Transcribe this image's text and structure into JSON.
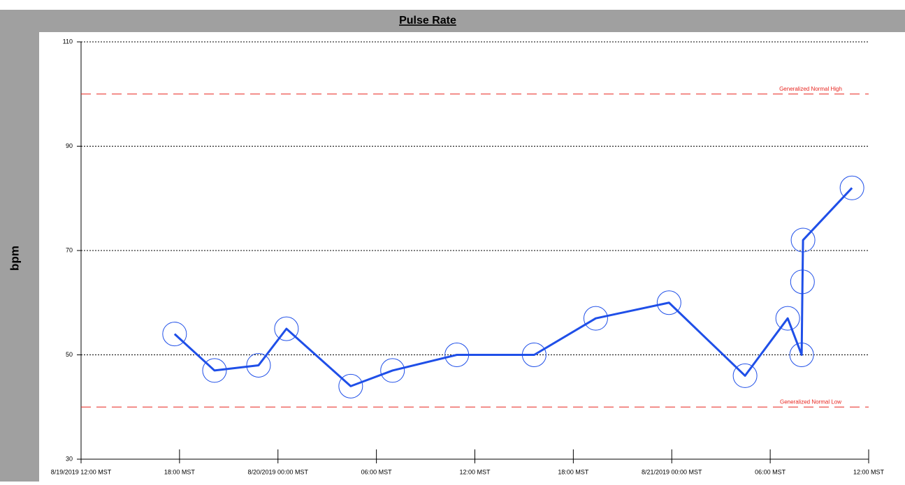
{
  "chart_data": {
    "type": "line",
    "title": "Pulse Rate",
    "y_label": "bpm",
    "x": [
      "2019-08-19T17:42",
      "2019-08-19T20:08",
      "2019-08-19T22:49",
      "2019-08-20T00:31",
      "2019-08-20T04:26",
      "2019-08-20T06:59",
      "2019-08-20T10:54",
      "2019-08-20T15:37",
      "2019-08-20T19:22",
      "2019-08-20T23:50",
      "2019-08-21T04:28",
      "2019-08-21T07:04",
      "2019-08-21T07:55",
      "2019-08-21T07:58",
      "2019-08-21T08:00",
      "2019-08-21T10:59"
    ],
    "series": [
      {
        "name": "Pulse Rate",
        "color": "#1f4fe8",
        "values": [
          54,
          47,
          48,
          55,
          44,
          47,
          50,
          50,
          57,
          60,
          46,
          57,
          50,
          64,
          72,
          82
        ]
      }
    ],
    "xlim": [
      "2019-08-19T12:00",
      "2019-08-21T12:00"
    ],
    "xticks": [
      {
        "value": "2019-08-19T12:00",
        "label": "8/19/2019 12:00 MST"
      },
      {
        "value": "2019-08-19T18:00",
        "label": "18:00 MST"
      },
      {
        "value": "2019-08-20T00:00",
        "label": "8/20/2019 00:00 MST"
      },
      {
        "value": "2019-08-20T06:00",
        "label": "06:00 MST"
      },
      {
        "value": "2019-08-20T12:00",
        "label": "12:00 MST"
      },
      {
        "value": "2019-08-20T18:00",
        "label": "18:00 MST"
      },
      {
        "value": "2019-08-21T00:00",
        "label": "8/21/2019 00:00 MST"
      },
      {
        "value": "2019-08-21T06:00",
        "label": "06:00 MST"
      },
      {
        "value": "2019-08-21T12:00",
        "label": "12:00 MST"
      }
    ],
    "ylim": [
      30,
      110
    ],
    "yticks": [
      30,
      50,
      70,
      90,
      110
    ],
    "grid": true,
    "reference_lines": [
      {
        "value": 100,
        "label": "Generalized Normal High",
        "color": "#e8251f"
      },
      {
        "value": 40,
        "label": "Generalized Normal Low",
        "color": "#e8251f"
      }
    ]
  }
}
